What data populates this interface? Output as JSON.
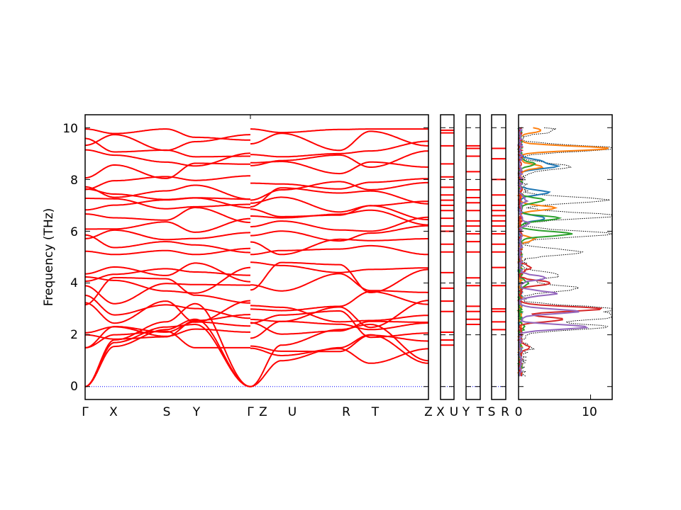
{
  "chart_data": [
    {
      "type": "line",
      "kind": "phonon-band-structure",
      "ylabel": "Frequency (THz)",
      "ylim": [
        -0.5,
        10.5
      ],
      "yticks": [
        0,
        2,
        4,
        6,
        8,
        10
      ],
      "line_color": "#ff0000",
      "zero_line_color": "#0000ff",
      "segments": [
        {
          "labels": [
            "Γ",
            "X",
            "S",
            "Y",
            "Γ"
          ],
          "positions": [
            0,
            0.4,
            1.1,
            1.5,
            2.25
          ],
          "band_groups": {
            "acoustic": [
              0.0,
              1.5,
              1.7
            ],
            "low_optical_edge": [
              1.6,
              2.0,
              2.2,
              2.5,
              2.8,
              3.0,
              3.4,
              3.7,
              4.0,
              4.3,
              4.5
            ],
            "high_optical_edge": [
              5.2,
              5.5,
              6.0,
              6.3,
              6.6,
              6.9,
              7.1,
              7.4,
              7.6,
              8.0,
              8.4,
              8.8,
              9.2,
              9.5,
              9.9
            ]
          }
        },
        {
          "labels": [
            "Z",
            "U",
            "R",
            "T",
            "Z"
          ],
          "positions": [
            0,
            0.4,
            1.15,
            1.55,
            2.3
          ],
          "band_groups": {
            "low_optical_edge": [
              1.0,
              1.6,
              2.0,
              2.2,
              2.5,
              2.8,
              3.0,
              3.4,
              3.9,
              4.2,
              4.5
            ],
            "high_optical_edge": [
              5.2,
              5.4,
              5.9,
              6.2,
              6.5,
              6.8,
              7.0,
              7.3,
              7.6,
              8.0,
              8.5,
              8.8,
              9.2,
              9.5,
              9.9
            ]
          }
        },
        {
          "labels": [
            "X",
            "U"
          ],
          "flat_bands": [
            1.6,
            1.8,
            2.1,
            2.9,
            3.3,
            3.8,
            4.4,
            5.2,
            5.5,
            6.0,
            6.2,
            6.5,
            6.8,
            7.0,
            7.2,
            7.4,
            7.7,
            8.1,
            8.6,
            9.3,
            9.8,
            9.9
          ]
        },
        {
          "labels": [
            "Y",
            "T"
          ],
          "flat_bands": [
            2.4,
            2.6,
            2.9,
            3.1,
            3.9,
            4.2,
            5.2,
            5.6,
            5.9,
            6.2,
            6.4,
            6.8,
            7.1,
            7.3,
            7.6,
            8.3,
            8.9,
            9.2,
            9.3
          ]
        },
        {
          "labels": [
            "S",
            "R"
          ],
          "flat_bands": [
            2.2,
            2.5,
            2.9,
            3.0,
            3.9,
            4.6,
            5.2,
            5.5,
            5.9,
            6.2,
            6.4,
            6.6,
            6.8,
            7.0,
            7.4,
            8.0,
            8.8,
            9.2
          ]
        }
      ]
    },
    {
      "type": "line",
      "kind": "projected-density-of-states",
      "xlim": [
        0,
        13
      ],
      "xticks": [
        0,
        10
      ],
      "ylim": [
        -0.5,
        10.5
      ],
      "total": {
        "style": "dotted",
        "color": "#000000"
      },
      "series": [
        {
          "color": "#1f77b4"
        },
        {
          "color": "#ff7f0e"
        },
        {
          "color": "#2ca02c"
        },
        {
          "color": "#d62728"
        },
        {
          "color": "#9467bd"
        }
      ],
      "peaks": {
        "total": [
          [
            0.5,
            0.3
          ],
          [
            1.5,
            1.2
          ],
          [
            2.3,
            11.5
          ],
          [
            2.7,
            12.8
          ],
          [
            3.0,
            12.4
          ],
          [
            3.8,
            7.8
          ],
          [
            4.3,
            5.4
          ],
          [
            5.2,
            8.0
          ],
          [
            5.9,
            12.5
          ],
          [
            6.6,
            13
          ],
          [
            7.2,
            11.5
          ],
          [
            8.5,
            7.0
          ],
          [
            9.2,
            13
          ],
          [
            9.9,
            4.5
          ]
        ],
        "s0": [
          [
            8.5,
            4.8
          ],
          [
            8.7,
            2.8
          ],
          [
            7.5,
            4.0
          ],
          [
            6.5,
            3.6
          ]
        ],
        "s1": [
          [
            9.2,
            12.2
          ],
          [
            8.5,
            3.0
          ],
          [
            6.9,
            4.7
          ],
          [
            5.7,
            1.9
          ],
          [
            9.9,
            3.0
          ]
        ],
        "s2": [
          [
            5.9,
            7.0
          ],
          [
            6.5,
            5.5
          ],
          [
            7.2,
            3.5
          ],
          [
            8.6,
            1.8
          ],
          [
            4.0,
            1.0
          ],
          [
            2.3,
            0.6
          ]
        ],
        "s3": [
          [
            3.0,
            11.5
          ],
          [
            2.6,
            6.0
          ],
          [
            4.0,
            4.3
          ],
          [
            4.6,
            1.5
          ],
          [
            1.5,
            1.2
          ]
        ],
        "s4": [
          [
            2.3,
            9.3
          ],
          [
            2.9,
            8.0
          ],
          [
            3.6,
            5.0
          ],
          [
            4.2,
            3.5
          ],
          [
            6.3,
            1.2
          ],
          [
            7.2,
            0.8
          ]
        ]
      }
    }
  ],
  "axes": {
    "panel1_ticks": [
      "Γ",
      "X",
      "S",
      "Y",
      "Γ"
    ],
    "panel1_tick_z": "Z",
    "panel2_ticks": [
      "U",
      "R",
      "T",
      "Z"
    ],
    "panel3_ticks": [
      "X",
      "U"
    ],
    "panel4_ticks": [
      "Y",
      "T"
    ],
    "panel5_ticks": [
      "S",
      "R"
    ],
    "dos_ticks": [
      "0",
      "10"
    ],
    "y_ticks": [
      "0",
      "2",
      "4",
      "6",
      "8",
      "10"
    ]
  }
}
